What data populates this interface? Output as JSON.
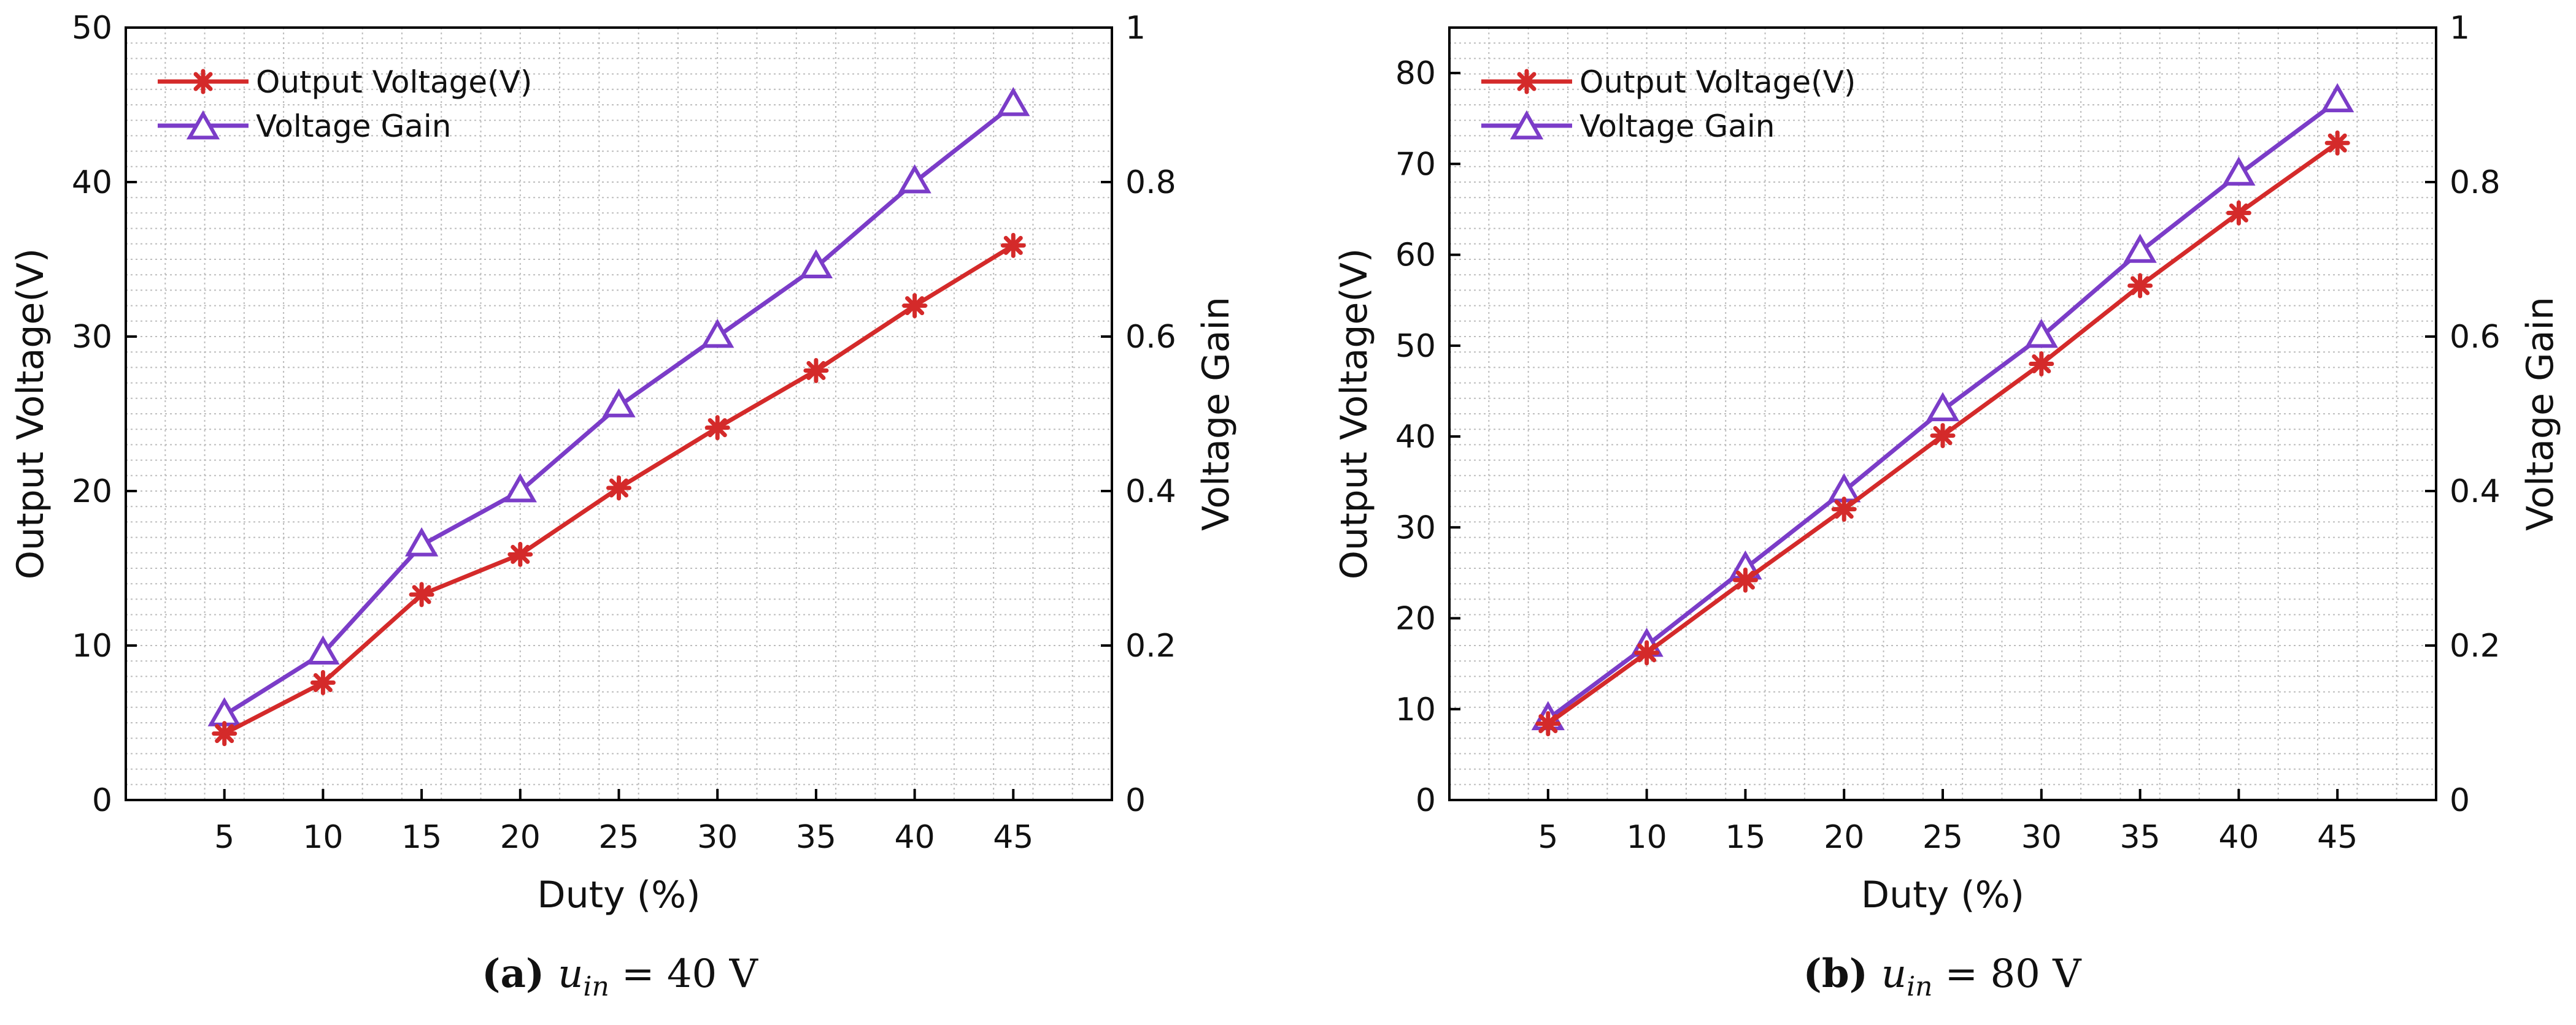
{
  "chart_data": [
    {
      "type": "line",
      "x": [
        5,
        10,
        15,
        20,
        25,
        30,
        35,
        40,
        45
      ],
      "xticks": [
        "5",
        "10",
        "15",
        "20",
        "25",
        "30",
        "35",
        "40",
        "45"
      ],
      "xlim": [
        0,
        50
      ],
      "xlabel": "Duty (%)",
      "ylabel": "Output Voltage(V)",
      "ylim": [
        0,
        50
      ],
      "yticks": [
        "0",
        "10",
        "20",
        "30",
        "40",
        "50"
      ],
      "y2label": "Voltage Gain",
      "y2lim": [
        0,
        1
      ],
      "y2ticks": [
        "0",
        "0.2",
        "0.4",
        "0.6",
        "0.8",
        "1"
      ],
      "grid": true,
      "legend_position": "top-left",
      "series": [
        {
          "name": "Output Voltage(V)",
          "axis": "left",
          "marker": "asterisk",
          "color": "#d42a2a",
          "values": [
            4.3,
            7.6,
            13.3,
            15.9,
            20.2,
            24.1,
            27.8,
            32.0,
            35.9
          ]
        },
        {
          "name": "Voltage Gain",
          "axis": "right",
          "marker": "triangle",
          "color": "#7b3cc8",
          "values": [
            0.11,
            0.19,
            0.33,
            0.4,
            0.51,
            0.6,
            0.69,
            0.8,
            0.9
          ]
        }
      ],
      "caption": {
        "label": "(a)",
        "var": "u",
        "sub": "in",
        "rest": "= 40 V"
      }
    },
    {
      "type": "line",
      "x": [
        5,
        10,
        15,
        20,
        25,
        30,
        35,
        40,
        45
      ],
      "xticks": [
        "5",
        "10",
        "15",
        "20",
        "25",
        "30",
        "35",
        "40",
        "45"
      ],
      "xlim": [
        0,
        50
      ],
      "xlabel": "Duty (%)",
      "ylabel": "Output Voltage(V)",
      "ylim": [
        0,
        85
      ],
      "yticks": [
        "0",
        "10",
        "20",
        "30",
        "40",
        "50",
        "60",
        "70",
        "80"
      ],
      "y2label": "Voltage Gain",
      "y2lim": [
        0,
        1
      ],
      "y2ticks": [
        "0",
        "0.2",
        "0.4",
        "0.6",
        "0.8",
        "1"
      ],
      "grid": true,
      "legend_position": "top-left",
      "series": [
        {
          "name": "Output Voltage(V)",
          "axis": "left",
          "marker": "asterisk",
          "color": "#d42a2a",
          "values": [
            8.4,
            16.2,
            24.2,
            32.0,
            40.1,
            48.0,
            56.6,
            64.6,
            72.3
          ]
        },
        {
          "name": "Voltage Gain",
          "axis": "right",
          "marker": "triangle",
          "color": "#7b3cc8",
          "values": [
            0.105,
            0.2,
            0.3,
            0.4,
            0.505,
            0.6,
            0.71,
            0.81,
            0.905
          ]
        }
      ],
      "caption": {
        "label": "(b)",
        "var": "u",
        "sub": "in",
        "rest": "= 80 V"
      }
    }
  ]
}
